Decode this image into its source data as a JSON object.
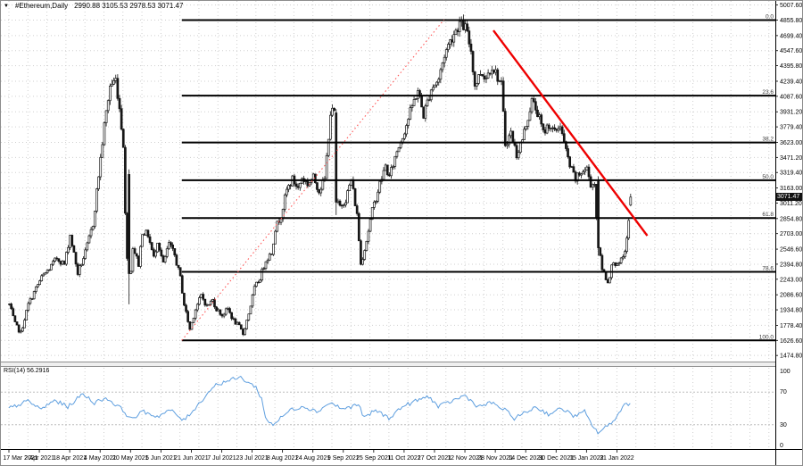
{
  "window": {
    "marker_icon": "▼",
    "title": "#Ethereum,Daily",
    "ohlc_readout": "2990.88 3105.53 2978.53 3071.47"
  },
  "price_axis": {
    "current_price": "3071.47",
    "ticks": [
      "5007.60",
      "4855.80",
      "4699.40",
      "4547.60",
      "4395.80",
      "4239.40",
      "4087.60",
      "3931.20",
      "3779.40",
      "3623.00",
      "3471.20",
      "3319.40",
      "3163.00",
      "3011.20",
      "2854.80",
      "2703.00",
      "2546.60",
      "2394.80",
      "2243.00",
      "2086.60",
      "1934.80",
      "1778.40",
      "1626.60",
      "1474.80"
    ]
  },
  "date_axis": {
    "ticks": [
      "17 Mar 2021",
      "2 Apr 2021",
      "18 Apr 2021",
      "4 May 2021",
      "20 May 2021",
      "5 Jun 2021",
      "21 Jun 2021",
      "7 Jul 2021",
      "23 Jul 2021",
      "8 Aug 2021",
      "24 Aug 2021",
      "9 Sep 2021",
      "25 Sep 2021",
      "11 Oct 2021",
      "27 Oct 2021",
      "12 Nov 2021",
      "28 Nov 2021",
      "14 Dec 2021",
      "30 Dec 2021",
      "15 Jan 2022",
      "31 Jan 2022"
    ]
  },
  "rsi": {
    "label": "RSI(14) 56.2916",
    "period": 14,
    "value": 56.2916,
    "scale_ticks": [
      "100",
      "70",
      "30",
      "0"
    ],
    "overbought": 70,
    "oversold": 30
  },
  "colors": {
    "background": "#ffffff",
    "grid": "#cfcfcf",
    "candle": "#161616",
    "fib_line": "#000000",
    "fib_diagonal": "#ff5555",
    "trendline": "#ee0000",
    "rsi_line": "#5f9fdf",
    "badge_bg": "#111111",
    "badge_text": "#ffffff",
    "axis_text": "#000000"
  },
  "chart_data": {
    "type": "candlestick",
    "symbol": "#Ethereum",
    "timeframe": "Daily",
    "title": "#Ethereum,Daily 2990.88 3105.53 2978.53 3071.47",
    "last_candle": {
      "open": 2990.88,
      "high": 3105.53,
      "low": 2978.53,
      "close": 3071.47
    },
    "x_start_date": "17 Mar 2021",
    "x_tick_interval_days": 16,
    "ylim": [
      1400,
      5060
    ],
    "grid": "dotted",
    "price_keypoints": [
      [
        0,
        1989
      ],
      [
        3,
        1791
      ],
      [
        6,
        1701
      ],
      [
        10,
        1989
      ],
      [
        14,
        2151
      ],
      [
        17,
        2259
      ],
      [
        21,
        2349
      ],
      [
        25,
        2457
      ],
      [
        29,
        2394
      ],
      [
        32,
        2691
      ],
      [
        36,
        2304
      ],
      [
        40,
        2511
      ],
      [
        44,
        2799
      ],
      [
        47,
        3294
      ],
      [
        50,
        3789
      ],
      [
        53,
        4194
      ],
      [
        56,
        4257
      ],
      [
        58,
        3969
      ],
      [
        60,
        3609
      ],
      [
        61,
        2889
      ],
      [
        63,
        2079
      ],
      [
        65,
        2574
      ],
      [
        68,
        2394
      ],
      [
        70,
        2727
      ],
      [
        73,
        2691
      ],
      [
        76,
        2457
      ],
      [
        78,
        2637
      ],
      [
        81,
        2394
      ],
      [
        84,
        2601
      ],
      [
        87,
        2484
      ],
      [
        90,
        2259
      ],
      [
        92,
        1989
      ],
      [
        95,
        1737
      ],
      [
        98,
        1944
      ],
      [
        101,
        2079
      ],
      [
        104,
        1971
      ],
      [
        107,
        2034
      ],
      [
        109,
        1944
      ],
      [
        112,
        1881
      ],
      [
        115,
        1944
      ],
      [
        118,
        1827
      ],
      [
        121,
        1764
      ],
      [
        123,
        1692
      ],
      [
        126,
        1899
      ],
      [
        129,
        2151
      ],
      [
        132,
        2259
      ],
      [
        135,
        2439
      ],
      [
        138,
        2511
      ],
      [
        140,
        2754
      ],
      [
        143,
        2889
      ],
      [
        146,
        3141
      ],
      [
        149,
        3249
      ],
      [
        152,
        3159
      ],
      [
        154,
        3267
      ],
      [
        157,
        3204
      ],
      [
        160,
        3267
      ],
      [
        163,
        3141
      ],
      [
        166,
        3249
      ],
      [
        169,
        3920
      ],
      [
        171,
        3930
      ],
      [
        173,
        3000
      ],
      [
        174,
        2979
      ],
      [
        177,
        3051
      ],
      [
        180,
        3249
      ],
      [
        183,
        2889
      ],
      [
        185,
        2394
      ],
      [
        188,
        2637
      ],
      [
        191,
        2934
      ],
      [
        195,
        3204
      ],
      [
        198,
        3384
      ],
      [
        200,
        3267
      ],
      [
        204,
        3537
      ],
      [
        208,
        3744
      ],
      [
        212,
        3987
      ],
      [
        215,
        4149
      ],
      [
        218,
        3897
      ],
      [
        222,
        4167
      ],
      [
        226,
        4257
      ],
      [
        229,
        4509
      ],
      [
        233,
        4689
      ],
      [
        237,
        4824
      ],
      [
        240,
        4779
      ],
      [
        243,
        4554
      ],
      [
        245,
        4194
      ],
      [
        248,
        4329
      ],
      [
        251,
        4284
      ],
      [
        254,
        4401
      ],
      [
        257,
        4284
      ],
      [
        259,
        4194
      ],
      [
        261,
        3609
      ],
      [
        264,
        3717
      ],
      [
        267,
        3501
      ],
      [
        270,
        3654
      ],
      [
        273,
        3879
      ],
      [
        275,
        4041
      ],
      [
        278,
        3924
      ],
      [
        281,
        3717
      ],
      [
        284,
        3807
      ],
      [
        287,
        3717
      ],
      [
        290,
        3807
      ],
      [
        292,
        3609
      ],
      [
        295,
        3384
      ],
      [
        298,
        3249
      ],
      [
        301,
        3321
      ],
      [
        304,
        3357
      ],
      [
        306,
        3204
      ],
      [
        308,
        3204
      ],
      [
        310,
        2560
      ],
      [
        312,
        2349
      ],
      [
        315,
        2214
      ],
      [
        318,
        2439
      ],
      [
        320,
        2367
      ],
      [
        323,
        2457
      ],
      [
        325,
        2637
      ],
      [
        326,
        2844
      ],
      [
        327,
        3040
      ]
    ],
    "special_candles": {
      "63": [
        3300,
        3350,
        1990,
        2300
      ],
      "172": [
        3920,
        3960,
        2890,
        3020
      ],
      "310": [
        3230,
        3280,
        2480,
        2560
      ],
      "327": [
        2990.88,
        3105.53,
        2978.53,
        3071.47
      ]
    },
    "fibonacci": {
      "levels": [
        {
          "label": "0.0",
          "price": 4855.8
        },
        {
          "label": "23.6",
          "price": 4093.7
        },
        {
          "label": "38.2",
          "price": 3622.2
        },
        {
          "label": "50.0",
          "price": 3241.2
        },
        {
          "label": "61.8",
          "price": 2860.2
        },
        {
          "label": "78.6",
          "price": 2317.7
        },
        {
          "label": "100.0",
          "price": 1626.6
        }
      ],
      "anchor_low": {
        "day": 91,
        "price": 1627
      },
      "anchor_high": {
        "day": 229,
        "price": 4860
      }
    },
    "trendline": {
      "from": {
        "day": 255,
        "price": 4752
      },
      "to": {
        "day": 336,
        "price": 2682
      }
    },
    "rsi_keypoints": [
      [
        0,
        50
      ],
      [
        10,
        59
      ],
      [
        17,
        49
      ],
      [
        24,
        60
      ],
      [
        31,
        52
      ],
      [
        39,
        68
      ],
      [
        45,
        57
      ],
      [
        51,
        63
      ],
      [
        56,
        55
      ],
      [
        60,
        48
      ],
      [
        64,
        37
      ],
      [
        71,
        46
      ],
      [
        78,
        40
      ],
      [
        85,
        48
      ],
      [
        92,
        35
      ],
      [
        99,
        53
      ],
      [
        104,
        67
      ],
      [
        108,
        78
      ],
      [
        115,
        84
      ],
      [
        122,
        88
      ],
      [
        126,
        82
      ],
      [
        130,
        76
      ],
      [
        133,
        62
      ],
      [
        135,
        38
      ],
      [
        139,
        30
      ],
      [
        144,
        40
      ],
      [
        148,
        48
      ],
      [
        155,
        53
      ],
      [
        162,
        46
      ],
      [
        169,
        57
      ],
      [
        176,
        49
      ],
      [
        184,
        55
      ],
      [
        187,
        38
      ],
      [
        193,
        48
      ],
      [
        200,
        38
      ],
      [
        207,
        52
      ],
      [
        214,
        59
      ],
      [
        221,
        65
      ],
      [
        226,
        52
      ],
      [
        233,
        59
      ],
      [
        240,
        66
      ],
      [
        247,
        52
      ],
      [
        254,
        57
      ],
      [
        261,
        48
      ],
      [
        266,
        38
      ],
      [
        273,
        46
      ],
      [
        277,
        52
      ],
      [
        284,
        43
      ],
      [
        291,
        50
      ],
      [
        298,
        40
      ],
      [
        303,
        46
      ],
      [
        306,
        33
      ],
      [
        310,
        20
      ],
      [
        315,
        28
      ],
      [
        320,
        40
      ],
      [
        324,
        55
      ],
      [
        327,
        56.29
      ]
    ]
  }
}
